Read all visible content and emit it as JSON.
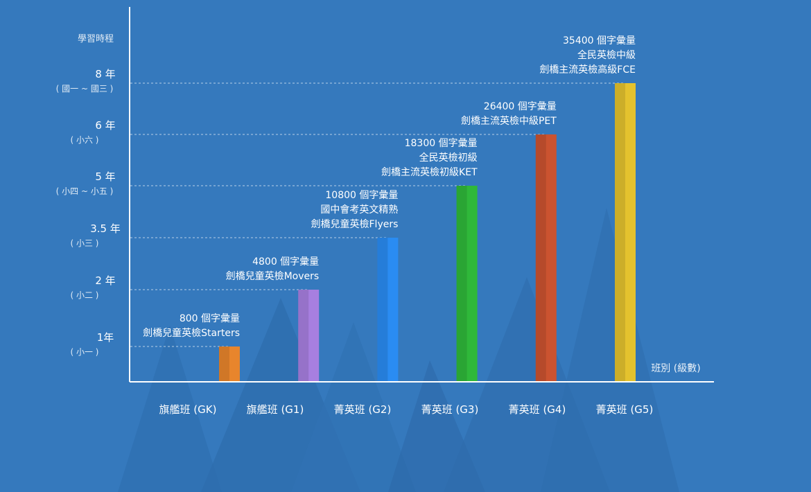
{
  "chart_data": {
    "type": "bar",
    "ylabel": "學習時程",
    "xlabel": "班別 (級數)",
    "y_ticks": [
      {
        "value": 1,
        "year": "1年",
        "grade": "( 小一 )"
      },
      {
        "value": 2,
        "year": "2 年",
        "grade": "( 小二 )"
      },
      {
        "value": 3.5,
        "year": "3.5 年",
        "grade": "( 小三 )"
      },
      {
        "value": 5,
        "year": "5 年",
        "grade": "( 小四 ~ 小五 )"
      },
      {
        "value": 6,
        "year": "6 年",
        "grade": "( 小六 )"
      },
      {
        "value": 8,
        "year": "8 年",
        "grade": "( 國一 ~ 國三 )"
      }
    ],
    "categories": [
      "旗艦班 (GK)",
      "旗艦班 (G1)",
      "菁英班 (G2)",
      "菁英班 (G3)",
      "菁英班 (G4)",
      "菁英班 (G5)"
    ],
    "values": [
      1,
      2,
      3.5,
      5,
      6,
      8
    ],
    "colors": [
      "#e8852c",
      "#a77fe0",
      "#2a8cf2",
      "#2fb83a",
      "#cb5330",
      "#e4c22e"
    ],
    "annotations": [
      [
        "800 個字彙量",
        "劍橋兒童英檢Starters"
      ],
      [
        "4800 個字彙量",
        "劍橋兒童英檢Movers"
      ],
      [
        "10800 個字彙量",
        "國中會考英文精熟",
        "劍橋兒童英檢Flyers"
      ],
      [
        "18300 個字彙量",
        "全民英檢初級",
        "劍橋主流英檢初級KET"
      ],
      [
        "26400 個字彙量",
        "劍橋主流英檢中級PET"
      ],
      [
        "35400 個字彙量",
        "全民英檢中級",
        "劍橋主流英檢高級FCE"
      ]
    ]
  }
}
